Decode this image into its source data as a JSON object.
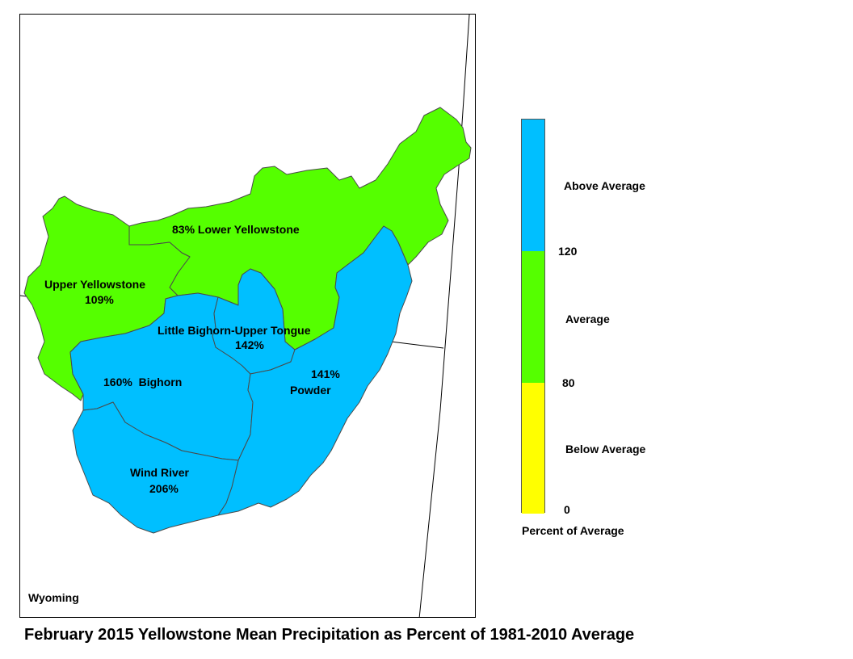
{
  "title": "February 2015 Yellowstone Mean Precipitation as Percent of 1981-2010 Average",
  "state_label": "Wyoming",
  "colors": {
    "above": "#00bfff",
    "average": "#55ff00",
    "below": "#ffff00",
    "basin_border": "#4a4a4a"
  },
  "basins": [
    {
      "id": "lower-yellowstone",
      "name": "Lower Yellowstone",
      "percent": "83%",
      "label": "83% Lower Yellowstone",
      "category": "average"
    },
    {
      "id": "upper-yellowstone",
      "name": "Upper Yellowstone",
      "percent": "109%",
      "category": "average"
    },
    {
      "id": "little-bighorn",
      "name": "Little Bighorn-Upper Tongue",
      "percent": "142%",
      "category": "above"
    },
    {
      "id": "bighorn",
      "name": "Bighorn",
      "percent": "160%",
      "label": "160%  Bighorn",
      "category": "above"
    },
    {
      "id": "powder",
      "name": "Powder",
      "percent": "141%",
      "category": "above"
    },
    {
      "id": "wind-river",
      "name": "Wind River",
      "percent": "206%",
      "category": "above"
    }
  ],
  "legend": {
    "title": "Percent of Average",
    "classes": [
      {
        "label": "Above Average",
        "color": "#00bfff",
        "min": 120
      },
      {
        "label": "Average",
        "color": "#55ff00",
        "min": 80,
        "max": 120
      },
      {
        "label": "Below Average",
        "color": "#ffff00",
        "min": 0,
        "max": 80
      }
    ],
    "breaks": [
      "120",
      "80",
      "0"
    ]
  }
}
